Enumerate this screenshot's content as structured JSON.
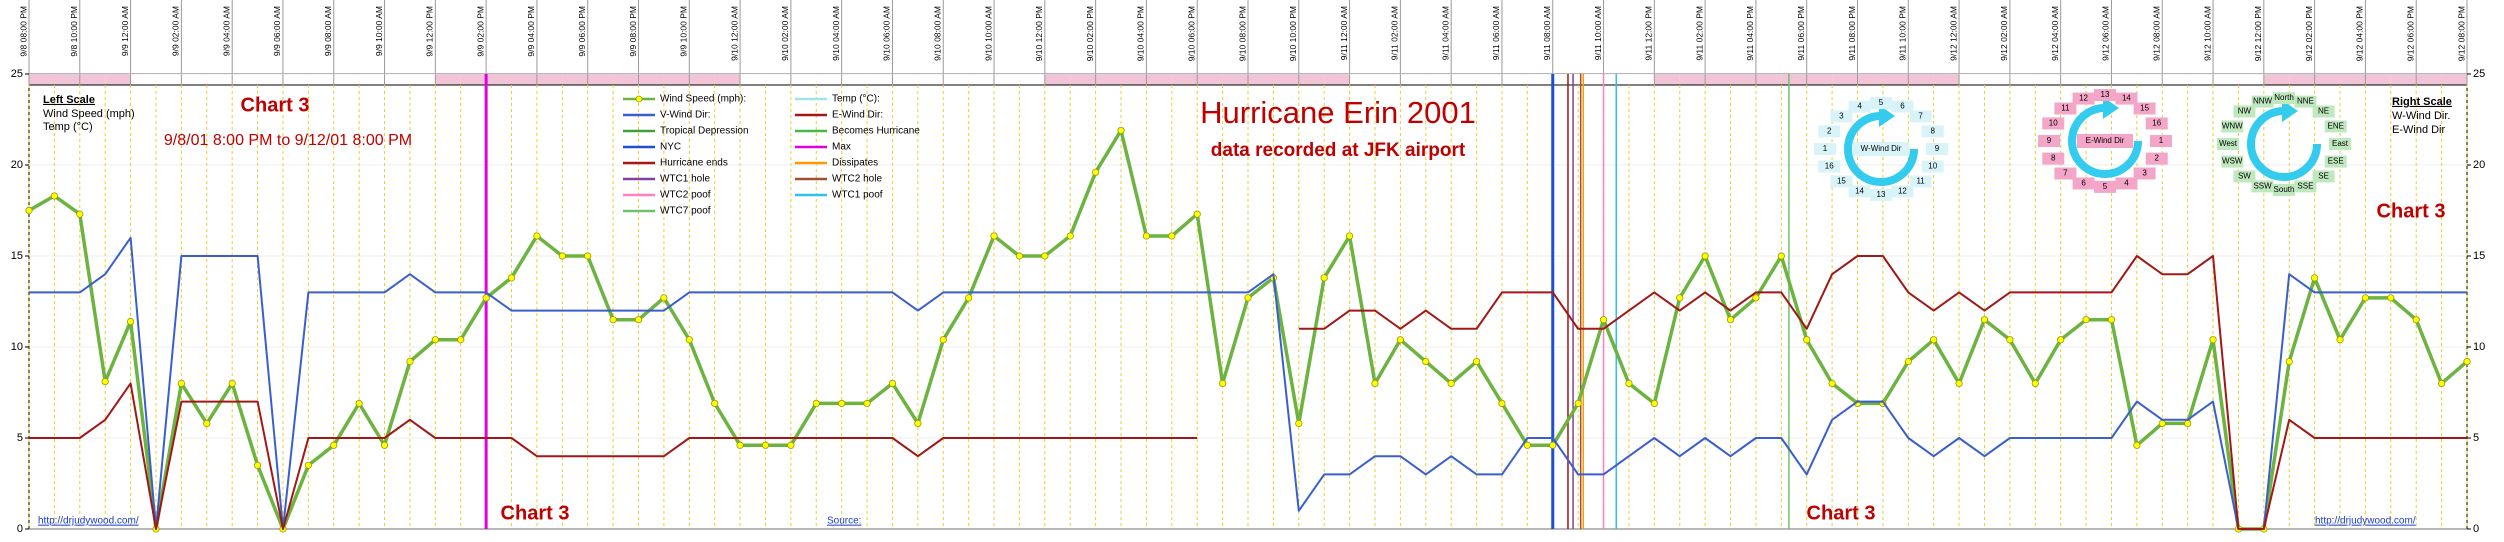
{
  "chart_data": {
    "type": "line",
    "title": "Hurricane Erin 2001",
    "subtitle": "data recorded at JFK airport",
    "date_range": "9/8/01 8:00 PM to 9/12/01 8:00 PM",
    "left_scale": {
      "title": "Left Scale",
      "lines": [
        "Wind Speed (mph)",
        "Temp (°C)"
      ]
    },
    "right_scale": {
      "title": "Right Scale",
      "lines": [
        "W-Wind Dir.",
        "E-Wind Dir"
      ]
    },
    "annotations": [
      "Chart 3",
      "Chart 3",
      "Chart 3",
      "Chart 3"
    ],
    "links": [
      "http://drjudywood.com/",
      "http://drjudywood.com/"
    ],
    "source": "Source:",
    "grid": true,
    "ylim": [
      0,
      25
    ],
    "yticks": [
      0,
      5,
      10,
      15,
      20,
      25
    ],
    "y2lim": [
      0,
      25
    ],
    "y2ticks": [
      0,
      5,
      10,
      15,
      20,
      25
    ],
    "categories": [
      "9/8 08:00 PM",
      null,
      "9/8 10:00 PM",
      null,
      "9/9 12:00 AM",
      null,
      "9/9 02:00 AM",
      null,
      "9/9 04:00 AM",
      null,
      "9/9 06:00 AM",
      null,
      "9/9 08:00 AM",
      null,
      "9/9 10:00 AM",
      null,
      "9/9 12:00 PM",
      null,
      "9/9 02:00 PM",
      null,
      "9/9 04:00 PM",
      null,
      "9/9 06:00 PM",
      null,
      "9/9 08:00 PM",
      null,
      "9/9 10:00 PM",
      null,
      "9/10 12:00 AM",
      null,
      "9/10 02:00 AM",
      null,
      "9/10 04:00 AM",
      null,
      "9/10 06:00 AM",
      null,
      "9/10 08:00 AM",
      null,
      "9/10 10:00 AM",
      null,
      "9/10 12:00 PM",
      null,
      "9/10 02:00 PM",
      null,
      "9/10 04:00 PM",
      null,
      "9/10 06:00 PM",
      null,
      "9/10 08:00 PM",
      null,
      "9/10 10:00 PM",
      null,
      "9/11 12:00 AM",
      null,
      "9/11 02:00 AM",
      null,
      "9/11 04:00 AM",
      null,
      "9/11 06:00 AM",
      null,
      "9/11 08:00 AM",
      null,
      "9/11 10:00 AM",
      null,
      "9/11 12:00 PM",
      null,
      "9/11 02:00 PM",
      null,
      "9/11 04:00 PM",
      null,
      "9/11 06:00 PM",
      null,
      "9/11 08:00 PM",
      null,
      "9/11 10:00 PM",
      null,
      "9/12 12:00 AM",
      null,
      "9/12 02:00 AM",
      null,
      "9/12 04:00 AM",
      null,
      "9/12 06:00 AM",
      null,
      "9/12 08:00 AM",
      null,
      "9/12 10:00 AM",
      null,
      "9/12 12:00 PM",
      null,
      "9/12 02:00 PM",
      null,
      "9/12 04:00 PM",
      null,
      "9/12 06:00 PM",
      null,
      "9/12 08:00 PM"
    ],
    "series": [
      {
        "name": "Wind Speed (mph):",
        "color": "#6cb33f",
        "marker_color": "#ffff00",
        "values": [
          17.5,
          18.3,
          17.3,
          8.1,
          11.4,
          0,
          8,
          5.8,
          8,
          3.5,
          0,
          3.5,
          4.6,
          6.9,
          4.6,
          9.2,
          10.4,
          10.4,
          12.7,
          13.8,
          16.1,
          15,
          15,
          11.5,
          11.5,
          12.7,
          10.4,
          6.9,
          4.6,
          4.6,
          4.6,
          6.9,
          6.9,
          6.9,
          8,
          5.8,
          10.4,
          12.7,
          16.1,
          15,
          15,
          16.1,
          19.6,
          21.9,
          16.1,
          16.1,
          17.3,
          8,
          12.7,
          13.8,
          5.8,
          13.8,
          16.1,
          8,
          10.4,
          9.2,
          8,
          9.2,
          6.9,
          4.6,
          4.6,
          6.9,
          11.5,
          8,
          6.9,
          12.7,
          15,
          11.5,
          12.7,
          15,
          10.4,
          8,
          6.9,
          6.9,
          9.2,
          10.4,
          8,
          11.5,
          10.4,
          8,
          10.4,
          11.5,
          11.5,
          4.6,
          5.8,
          5.8,
          10.4,
          0,
          0,
          9.2,
          13.8,
          10.4,
          12.7,
          12.7,
          11.5,
          8,
          9.2
        ]
      },
      {
        "name": "V-Wind Dir:",
        "color": "#3a5fcd",
        "axis": "y2",
        "values": [
          13,
          13,
          13,
          14,
          16,
          0,
          15,
          15,
          15,
          15,
          0,
          13,
          13,
          13,
          13,
          14,
          13,
          13,
          13,
          12,
          12,
          12,
          12,
          12,
          12,
          12,
          13,
          13,
          13,
          13,
          13,
          13,
          13,
          13,
          13,
          12,
          13,
          13,
          13,
          13,
          13,
          13,
          13,
          13,
          13,
          13,
          13,
          13,
          13,
          14,
          1,
          3,
          3,
          4,
          4,
          3,
          4,
          3,
          3,
          5,
          5,
          3,
          3,
          4,
          5,
          4,
          5,
          4,
          5,
          5,
          3,
          6,
          7,
          7,
          5,
          4,
          5,
          4,
          5,
          5,
          5,
          5,
          5,
          7,
          6,
          6,
          7,
          0,
          0,
          14,
          13,
          13,
          13,
          13,
          13,
          13,
          13
        ]
      },
      {
        "name": "E-Wind Dir:",
        "color": "#a01818",
        "axis": "y2",
        "values": [
          5,
          5,
          5,
          6,
          8,
          0,
          7,
          7,
          7,
          7,
          0,
          5,
          5,
          5,
          5,
          6,
          5,
          5,
          5,
          5,
          4,
          4,
          4,
          4,
          4,
          4,
          5,
          5,
          5,
          5,
          5,
          5,
          5,
          5,
          5,
          4,
          5,
          5,
          5,
          5,
          5,
          5,
          5,
          5,
          5,
          5,
          5,
          null,
          null,
          null,
          11,
          11,
          12,
          12,
          11,
          12,
          11,
          11,
          13,
          13,
          13,
          11,
          11,
          12,
          13,
          12,
          13,
          12,
          13,
          13,
          11,
          14,
          15,
          15,
          13,
          12,
          13,
          12,
          13,
          13,
          13,
          13,
          13,
          15,
          14,
          14,
          15,
          0,
          0,
          6,
          5,
          5,
          5,
          5,
          5,
          5,
          5
        ]
      }
    ],
    "temp_legend": {
      "name": "Temp (°C):",
      "color": "#9fe3ef"
    },
    "events": [
      {
        "name": "Tropical Depression",
        "color": "#3ca03c",
        "x": null
      },
      {
        "name": "Becomes Hurricane",
        "color": "#48b848",
        "x": null
      },
      {
        "name": "NYC",
        "color": "#1f4fd0",
        "x": 60
      },
      {
        "name": "Max",
        "color": "#e000e0",
        "x": 18
      },
      {
        "name": "Hurricane ends",
        "color": "#a01818",
        "x": 60.6
      },
      {
        "name": "Dissipates",
        "color": "#ff9900",
        "x": 61.2
      },
      {
        "name": "WTC1 hole",
        "color": "#8040a0",
        "x": 60.8
      },
      {
        "name": "WTC2 hole",
        "color": "#a05030",
        "x": 61.1
      },
      {
        "name": "WTC2 poof",
        "color": "#ff80c0",
        "x": 62
      },
      {
        "name": "WTC1 poof",
        "color": "#30c0f0",
        "x": 62.5
      },
      {
        "name": "WTC7 poof",
        "color": "#70c070",
        "x": 69.3
      }
    ],
    "diagrams": [
      {
        "label": "W-Wind Dir",
        "points": [
          1,
          2,
          3,
          4,
          5,
          6,
          7,
          8,
          9,
          10,
          11,
          12,
          13,
          14,
          15,
          16
        ]
      },
      {
        "label": "E-Wind Dir",
        "points": [
          1,
          2,
          3,
          4,
          5,
          6,
          7,
          8,
          9,
          10,
          11,
          12,
          13,
          14,
          15,
          16
        ]
      },
      {
        "points": [
          "North",
          "NNE",
          "NE",
          "ENE",
          "East",
          "ESE",
          "SE",
          "SSE",
          "South",
          "SSW",
          "SW",
          "WSW",
          "West",
          "WNW",
          "NW",
          "NNW"
        ]
      }
    ]
  }
}
